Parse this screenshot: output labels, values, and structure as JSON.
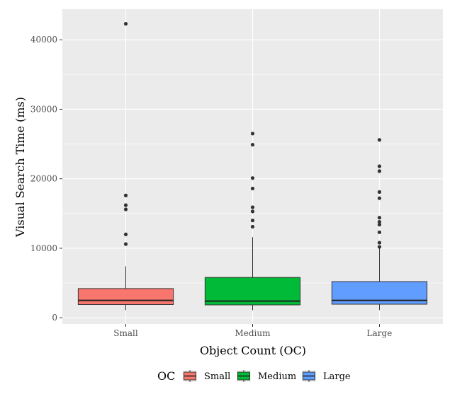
{
  "chart_data": {
    "type": "boxplot",
    "xlabel": "Object Count (OC)",
    "ylabel": "Visual Search Time (ms)",
    "ylim": [
      -900,
      44400
    ],
    "yticks": [
      0,
      10000,
      20000,
      30000,
      40000
    ],
    "categories": [
      "Small",
      "Medium",
      "Large"
    ],
    "grid": true,
    "legend": {
      "title": "OC",
      "position": "bottom",
      "entries": [
        "Small",
        "Medium",
        "Large"
      ]
    },
    "colors": {
      "Small": "#f8766d",
      "Medium": "#00ba38",
      "Large": "#619cff",
      "panel": "#ebebeb",
      "grid": "#ffffff"
    },
    "boxes": [
      {
        "category": "Small",
        "whisker_low": 1100,
        "q1": 1900,
        "median": 2500,
        "q3": 4200,
        "whisker_high": 7400,
        "outliers": [
          10600,
          12000,
          15600,
          16200,
          17600,
          42300
        ]
      },
      {
        "category": "Medium",
        "whisker_low": 1100,
        "q1": 1850,
        "median": 2400,
        "q3": 5800,
        "whisker_high": 11600,
        "outliers": [
          13100,
          14000,
          15300,
          15900,
          18600,
          20100,
          24900,
          26500
        ]
      },
      {
        "category": "Large",
        "whisker_low": 1100,
        "q1": 1950,
        "median": 2500,
        "q3": 5200,
        "whisker_high": 10000,
        "outliers": [
          10200,
          10800,
          12300,
          13400,
          13800,
          14400,
          17200,
          18100,
          21100,
          21800,
          25600
        ]
      }
    ]
  }
}
